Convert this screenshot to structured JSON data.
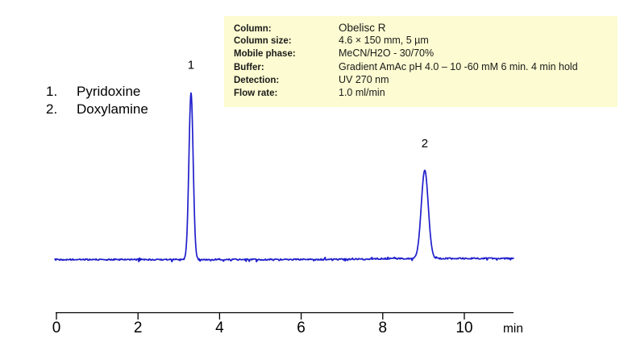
{
  "figure": {
    "background": "#ffffff"
  },
  "peak_list": {
    "items": [
      {
        "number": "1.",
        "name": "Pyridoxine"
      },
      {
        "number": "2.",
        "name": "Doxylamine"
      }
    ]
  },
  "conditions": {
    "background": "#fcfbd1",
    "rows": [
      {
        "label": "Column:",
        "value": "Obelisc R",
        "emph": true
      },
      {
        "label": "Column size:",
        "value": "4.6 × 150 mm, 5 µm",
        "emph": false
      },
      {
        "label": "Mobile phase:",
        "value": "MeCN/H2O - 30/70%",
        "emph": false
      },
      {
        "label": "Buffer:",
        "value": "Gradient AmAc pH 4.0 – 10 -60  mM 6 min. 4 min hold",
        "emph": false
      },
      {
        "label": "Detection:",
        "value": "UV 270 nm",
        "emph": false
      },
      {
        "label": "Flow rate:",
        "value": "1.0 ml/min",
        "emph": false
      }
    ]
  },
  "chart_data": {
    "type": "line",
    "xlabel": "min",
    "x_range": [
      0,
      11.2
    ],
    "x_ticks": [
      0,
      2,
      4,
      6,
      8,
      10
    ],
    "x_tick_labels": [
      "0",
      "2",
      "4",
      "6",
      "8",
      "10"
    ],
    "axis_unit_label": "min",
    "grid": false,
    "legend": "none",
    "trace_color": "#1f1fcc",
    "axis_color": "#000000",
    "baseline_rel": 0,
    "noise_rel": 0.006,
    "peaks": [
      {
        "label": "1",
        "compound": "Pyridoxine",
        "rt_min": 3.3,
        "height_rel": 1.0,
        "sigma_min": 0.052
      },
      {
        "label": "2",
        "compound": "Doxylamine",
        "rt_min": 9.03,
        "height_rel": 0.53,
        "sigma_min": 0.085
      }
    ]
  }
}
